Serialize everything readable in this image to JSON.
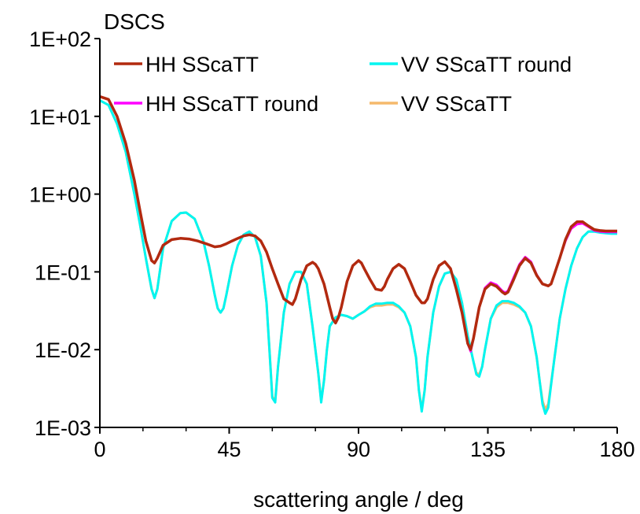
{
  "chart_data": {
    "type": "line",
    "title": "",
    "ylabel": "DSCS",
    "xlabel": "scattering angle / deg",
    "xlim": [
      0,
      180
    ],
    "ylim": [
      0.001,
      100
    ],
    "yscale": "log",
    "grid": false,
    "legend_position": "top",
    "x_ticks": [
      0,
      45,
      90,
      135,
      180
    ],
    "x_tick_labels": [
      "0",
      "45",
      "90",
      "135",
      "180"
    ],
    "y_ticks": [
      0.001,
      0.01,
      0.1,
      1,
      10,
      100
    ],
    "y_tick_labels": [
      "1E-03",
      "1E-02",
      "1E-01",
      "1E+00",
      "1E+01",
      "1E+02"
    ],
    "legend_order": [
      0,
      2,
      3,
      1
    ],
    "series": [
      {
        "name": "HH SScaTT",
        "color": "#b22a0f",
        "x": [
          0,
          3,
          6,
          9,
          12,
          14,
          16,
          18,
          19,
          20,
          22,
          25,
          28,
          31,
          34,
          37,
          40,
          42,
          44,
          46,
          48,
          50,
          52,
          54,
          56,
          58,
          60,
          62,
          64,
          66,
          67,
          68,
          70,
          72,
          74,
          75,
          76,
          78,
          80,
          81,
          82,
          83,
          84,
          86,
          88,
          90,
          91,
          92,
          94,
          96,
          98,
          99,
          100,
          102,
          104,
          106,
          108,
          110,
          112,
          113,
          114,
          116,
          118,
          120,
          122,
          124,
          126,
          128,
          129,
          130,
          132,
          134,
          136,
          138,
          140,
          141,
          142,
          144,
          146,
          148,
          150,
          152,
          154,
          156,
          157,
          158,
          160,
          162,
          164,
          166,
          168,
          170,
          172,
          174,
          176,
          178,
          180
        ],
        "y": [
          18,
          16.5,
          10,
          4.5,
          1.5,
          0.6,
          0.25,
          0.14,
          0.13,
          0.15,
          0.22,
          0.26,
          0.27,
          0.265,
          0.25,
          0.23,
          0.21,
          0.215,
          0.23,
          0.25,
          0.27,
          0.29,
          0.3,
          0.29,
          0.25,
          0.18,
          0.11,
          0.07,
          0.045,
          0.04,
          0.038,
          0.045,
          0.08,
          0.12,
          0.133,
          0.125,
          0.11,
          0.07,
          0.035,
          0.025,
          0.022,
          0.026,
          0.035,
          0.075,
          0.12,
          0.14,
          0.13,
          0.11,
          0.08,
          0.06,
          0.058,
          0.065,
          0.08,
          0.11,
          0.125,
          0.11,
          0.075,
          0.05,
          0.04,
          0.04,
          0.045,
          0.08,
          0.12,
          0.135,
          0.11,
          0.06,
          0.03,
          0.012,
          0.01,
          0.014,
          0.035,
          0.06,
          0.07,
          0.065,
          0.055,
          0.052,
          0.055,
          0.08,
          0.12,
          0.15,
          0.13,
          0.09,
          0.07,
          0.066,
          0.07,
          0.09,
          0.15,
          0.26,
          0.38,
          0.44,
          0.44,
          0.39,
          0.35,
          0.34,
          0.335,
          0.335,
          0.335
        ]
      },
      {
        "name": "VV SScaTT",
        "color": "#f5b96b",
        "x": [
          0,
          3,
          6,
          9,
          12,
          14,
          16,
          18,
          19,
          20,
          22,
          25,
          28,
          30,
          33,
          36,
          38,
          40,
          41,
          42,
          43,
          44,
          46,
          48,
          50,
          52,
          54,
          56,
          58,
          59,
          60,
          61,
          62,
          64,
          66,
          68,
          70,
          72,
          74,
          76,
          77,
          78,
          79,
          80,
          82,
          84,
          86,
          88,
          90,
          92,
          94,
          96,
          98,
          100,
          102,
          104,
          106,
          108,
          110,
          111,
          112,
          113,
          114,
          116,
          118,
          120,
          122,
          124,
          126,
          128,
          130,
          131,
          132,
          133,
          134,
          136,
          138,
          140,
          142,
          144,
          146,
          148,
          150,
          152,
          153,
          154,
          155,
          156,
          158,
          160,
          162,
          164,
          166,
          168,
          170,
          172,
          174,
          176,
          178,
          180
        ],
        "y": [
          16,
          14,
          8,
          3.5,
          1.0,
          0.4,
          0.15,
          0.06,
          0.046,
          0.06,
          0.2,
          0.45,
          0.57,
          0.58,
          0.48,
          0.25,
          0.12,
          0.05,
          0.034,
          0.03,
          0.034,
          0.05,
          0.12,
          0.22,
          0.3,
          0.33,
          0.28,
          0.16,
          0.04,
          0.01,
          0.0025,
          0.0022,
          0.006,
          0.03,
          0.07,
          0.1,
          0.1,
          0.07,
          0.02,
          0.005,
          0.0022,
          0.004,
          0.01,
          0.02,
          0.026,
          0.028,
          0.027,
          0.025,
          0.028,
          0.031,
          0.035,
          0.037,
          0.037,
          0.038,
          0.038,
          0.035,
          0.03,
          0.02,
          0.008,
          0.003,
          0.0017,
          0.003,
          0.008,
          0.03,
          0.065,
          0.095,
          0.1,
          0.08,
          0.04,
          0.015,
          0.007,
          0.005,
          0.0048,
          0.006,
          0.01,
          0.025,
          0.035,
          0.04,
          0.04,
          0.038,
          0.035,
          0.03,
          0.02,
          0.008,
          0.004,
          0.0022,
          0.0017,
          0.002,
          0.007,
          0.025,
          0.06,
          0.12,
          0.2,
          0.28,
          0.33,
          0.34,
          0.335,
          0.33,
          0.325,
          0.32
        ]
      },
      {
        "name": "VV SScaTT round",
        "color": "#00f5f0",
        "x": [
          0,
          3,
          6,
          9,
          12,
          14,
          16,
          18,
          19,
          20,
          22,
          25,
          28,
          30,
          33,
          36,
          38,
          40,
          41,
          42,
          43,
          44,
          46,
          48,
          50,
          52,
          54,
          56,
          58,
          59,
          60,
          61,
          62,
          64,
          66,
          68,
          70,
          72,
          74,
          76,
          77,
          78,
          79,
          80,
          82,
          84,
          86,
          88,
          90,
          92,
          94,
          96,
          98,
          100,
          102,
          104,
          106,
          108,
          110,
          111,
          112,
          113,
          114,
          116,
          118,
          120,
          122,
          124,
          126,
          128,
          130,
          131,
          132,
          133,
          134,
          136,
          138,
          140,
          142,
          144,
          146,
          148,
          150,
          152,
          153,
          154,
          155,
          156,
          158,
          160,
          162,
          164,
          166,
          168,
          170,
          172,
          174,
          176,
          178,
          180
        ],
        "y": [
          16,
          14,
          8,
          3.5,
          1.0,
          0.4,
          0.15,
          0.06,
          0.046,
          0.06,
          0.2,
          0.45,
          0.57,
          0.58,
          0.48,
          0.25,
          0.12,
          0.05,
          0.034,
          0.03,
          0.034,
          0.05,
          0.12,
          0.22,
          0.3,
          0.33,
          0.28,
          0.16,
          0.04,
          0.01,
          0.0024,
          0.0021,
          0.006,
          0.03,
          0.07,
          0.1,
          0.1,
          0.07,
          0.02,
          0.005,
          0.0021,
          0.004,
          0.01,
          0.02,
          0.026,
          0.028,
          0.027,
          0.025,
          0.028,
          0.031,
          0.036,
          0.039,
          0.039,
          0.04,
          0.04,
          0.036,
          0.03,
          0.02,
          0.008,
          0.003,
          0.0016,
          0.003,
          0.008,
          0.03,
          0.065,
          0.095,
          0.1,
          0.08,
          0.04,
          0.015,
          0.007,
          0.0048,
          0.0045,
          0.006,
          0.01,
          0.025,
          0.037,
          0.042,
          0.042,
          0.04,
          0.036,
          0.03,
          0.02,
          0.008,
          0.004,
          0.002,
          0.0015,
          0.0018,
          0.007,
          0.025,
          0.06,
          0.12,
          0.2,
          0.28,
          0.33,
          0.33,
          0.32,
          0.315,
          0.31,
          0.31
        ]
      },
      {
        "name": "HH SScaTT round",
        "color": "#ff00ff",
        "x": [
          0,
          3,
          6,
          9,
          12,
          14,
          16,
          18,
          19,
          20,
          22,
          25,
          28,
          31,
          34,
          37,
          40,
          42,
          44,
          46,
          48,
          50,
          52,
          54,
          56,
          58,
          60,
          62,
          64,
          66,
          67,
          68,
          70,
          72,
          74,
          75,
          76,
          78,
          80,
          81,
          82,
          83,
          84,
          86,
          88,
          90,
          91,
          92,
          94,
          96,
          98,
          99,
          100,
          102,
          104,
          106,
          108,
          110,
          112,
          113,
          114,
          116,
          118,
          120,
          122,
          124,
          126,
          128,
          129,
          130,
          132,
          134,
          136,
          138,
          140,
          141,
          142,
          144,
          146,
          148,
          150,
          152,
          154,
          156,
          157,
          158,
          160,
          162,
          164,
          166,
          168,
          170,
          172,
          174,
          176,
          178,
          180
        ],
        "y": [
          18,
          16.5,
          10,
          4.5,
          1.5,
          0.6,
          0.25,
          0.14,
          0.13,
          0.15,
          0.22,
          0.26,
          0.27,
          0.265,
          0.25,
          0.23,
          0.21,
          0.215,
          0.23,
          0.25,
          0.27,
          0.29,
          0.3,
          0.29,
          0.25,
          0.18,
          0.11,
          0.07,
          0.045,
          0.04,
          0.038,
          0.045,
          0.08,
          0.12,
          0.133,
          0.125,
          0.11,
          0.07,
          0.035,
          0.025,
          0.022,
          0.026,
          0.035,
          0.075,
          0.12,
          0.14,
          0.13,
          0.11,
          0.08,
          0.06,
          0.058,
          0.065,
          0.08,
          0.11,
          0.125,
          0.11,
          0.075,
          0.05,
          0.04,
          0.04,
          0.045,
          0.08,
          0.12,
          0.135,
          0.11,
          0.06,
          0.03,
          0.012,
          0.0095,
          0.014,
          0.035,
          0.062,
          0.073,
          0.068,
          0.057,
          0.054,
          0.057,
          0.085,
          0.125,
          0.155,
          0.135,
          0.092,
          0.07,
          0.066,
          0.07,
          0.09,
          0.15,
          0.25,
          0.36,
          0.41,
          0.42,
          0.38,
          0.34,
          0.33,
          0.325,
          0.325,
          0.325
        ]
      }
    ]
  }
}
